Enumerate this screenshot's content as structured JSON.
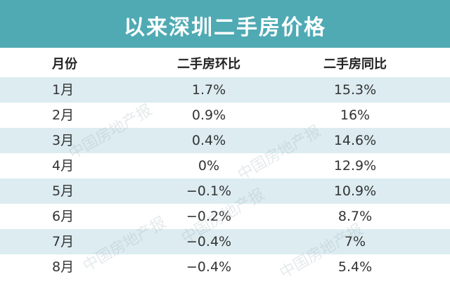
{
  "header": {
    "title": "以来深圳二手房价格"
  },
  "watermark": "中国房地产报",
  "table": {
    "columns": [
      "月份",
      "二手房环比",
      "二手房同比"
    ],
    "rows": [
      [
        "1月",
        "1.7%",
        "15.3%"
      ],
      [
        "2月",
        "0.9%",
        "16%"
      ],
      [
        "3月",
        "0.4%",
        "14.6%"
      ],
      [
        "4月",
        "0%",
        "12.9%"
      ],
      [
        "5月",
        "−0.1%",
        "10.9%"
      ],
      [
        "6月",
        "−0.2%",
        "8.7%"
      ],
      [
        "7月",
        "−0.4%",
        "7%"
      ],
      [
        "8月",
        "−0.4%",
        "5.4%"
      ]
    ]
  }
}
